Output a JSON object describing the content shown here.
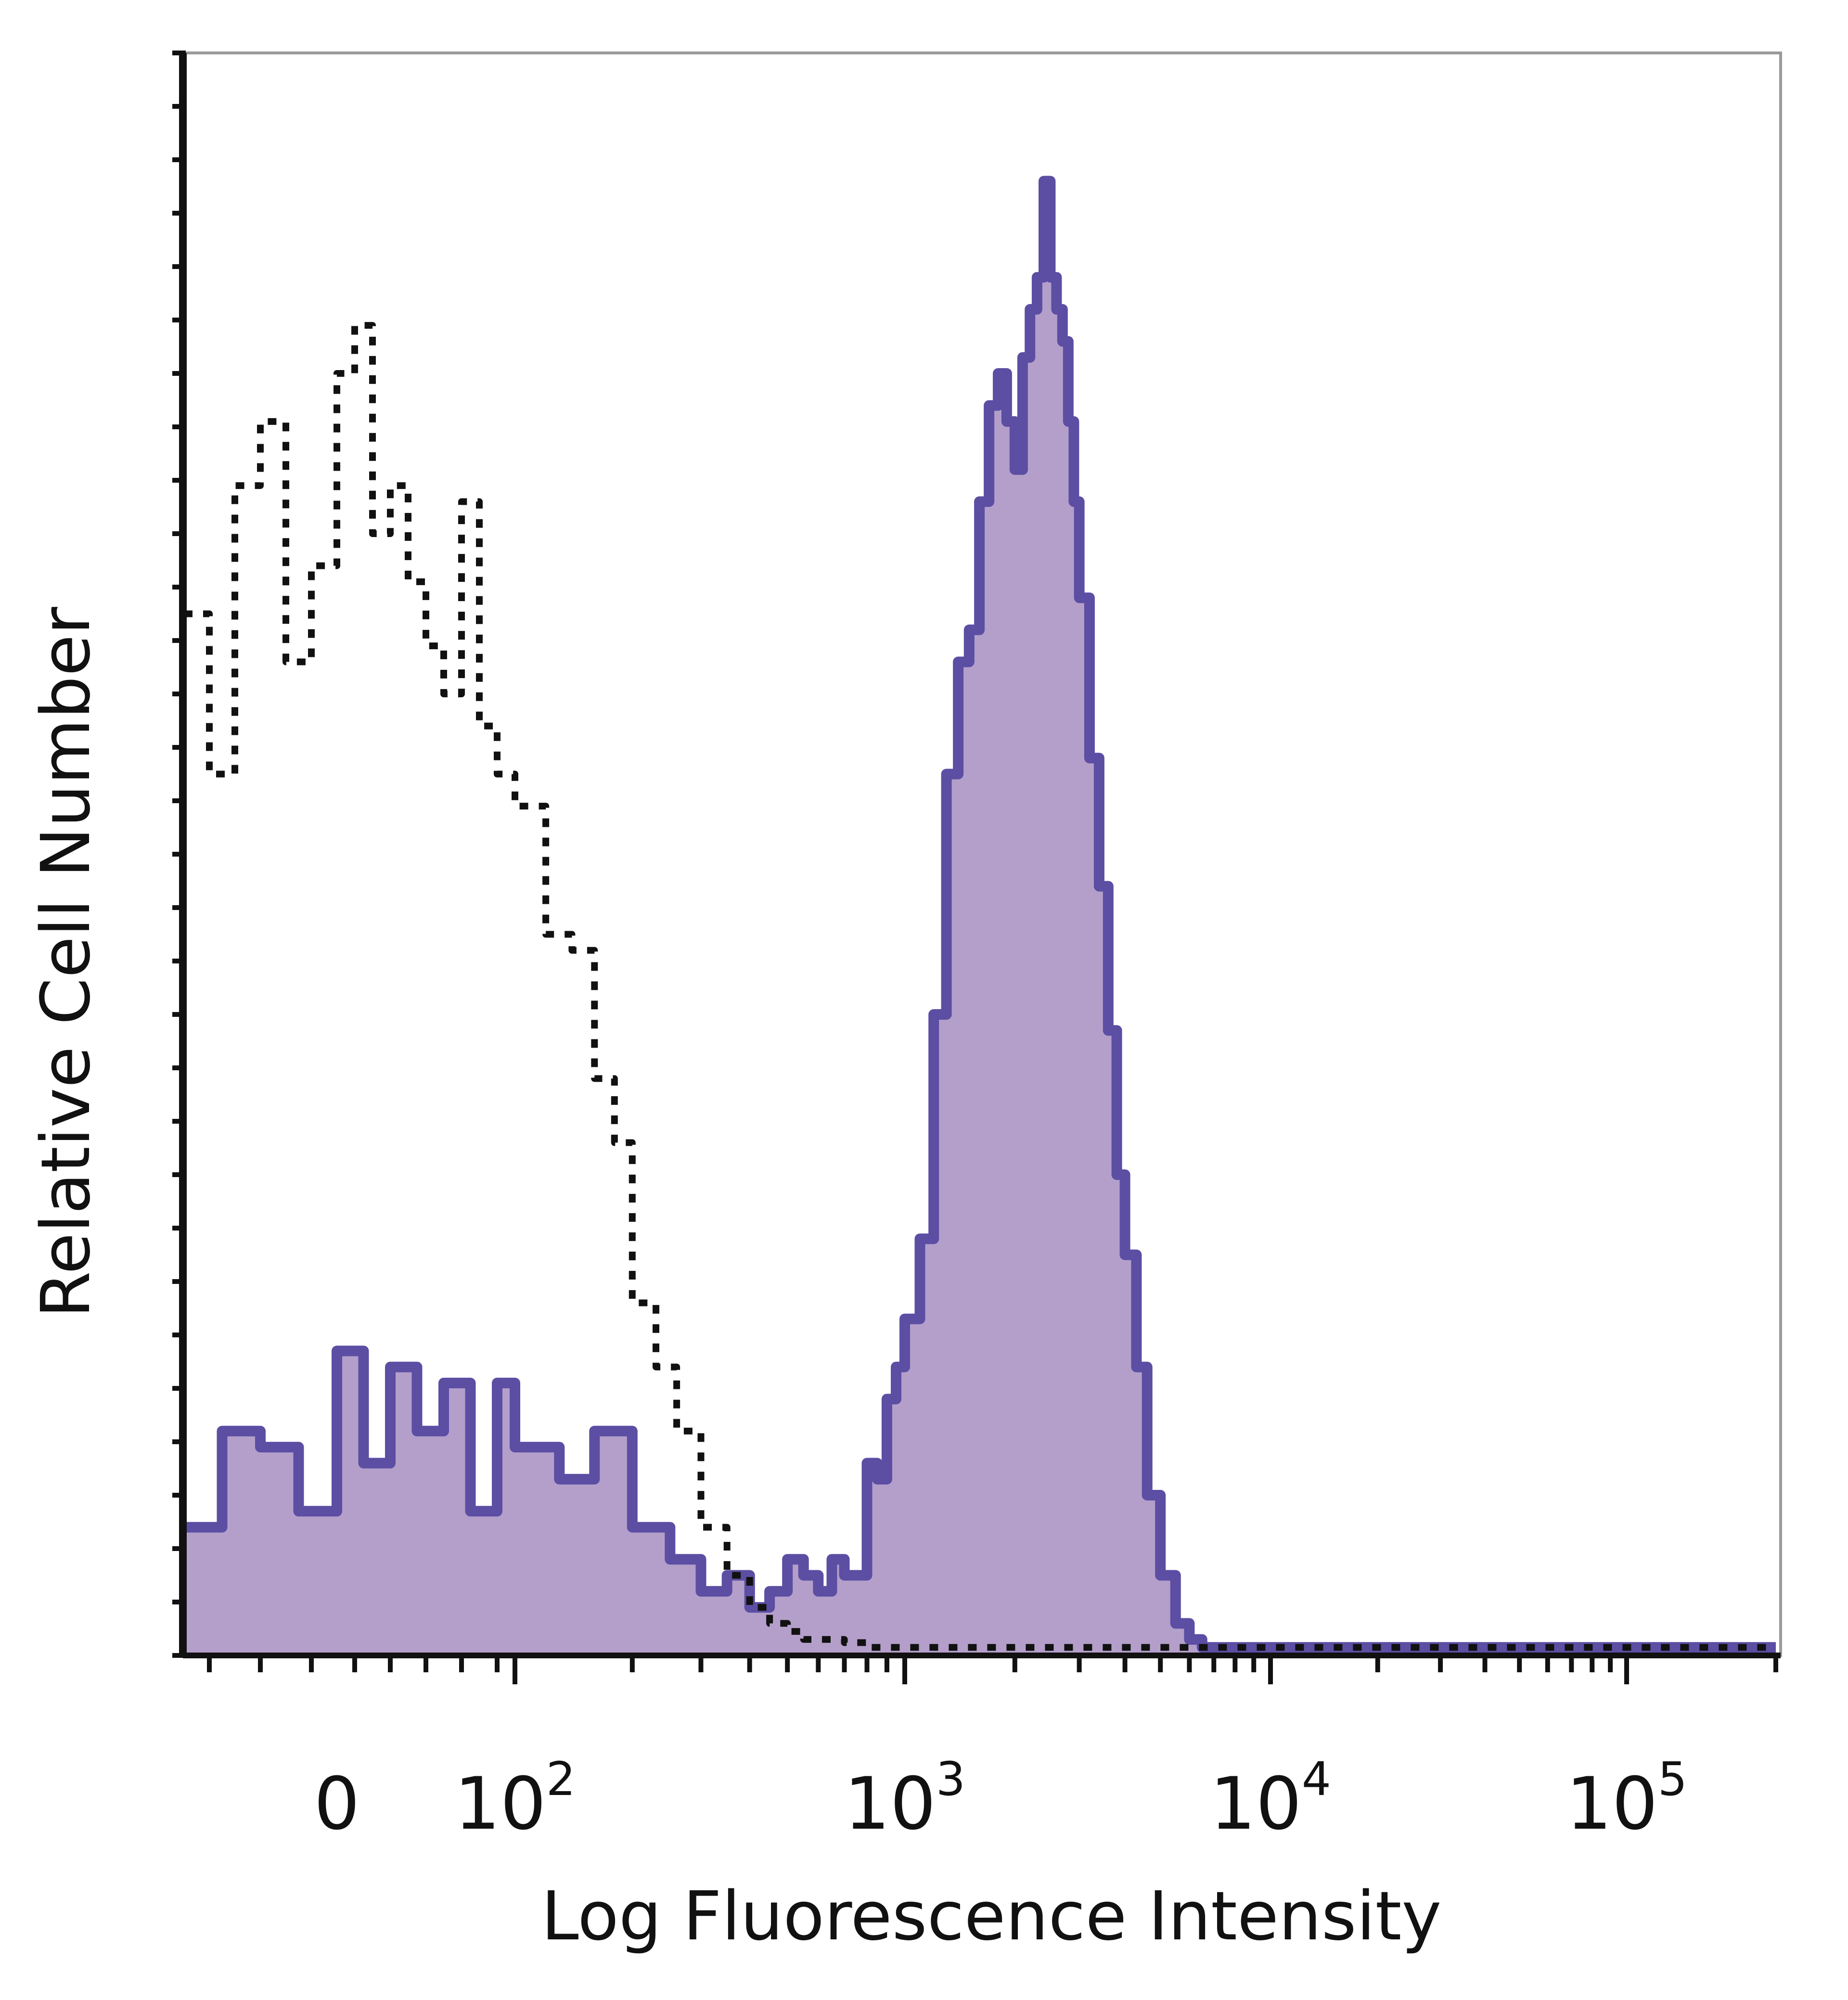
{
  "chart_data": {
    "type": "area",
    "xlabel": "Log Fluorescence Intensity",
    "ylabel": "Relative Cell Number",
    "x_scale": "biexponential",
    "x_ticks": [
      {
        "base": "0",
        "exp": "",
        "value": 0
      },
      {
        "base": "10",
        "exp": "2",
        "value": 100
      },
      {
        "base": "10",
        "exp": "3",
        "value": 1000
      },
      {
        "base": "10",
        "exp": "4",
        "value": 10000
      },
      {
        "base": "10",
        "exp": "5",
        "value": 100000
      }
    ],
    "ylim": [
      0,
      100
    ],
    "grid": false,
    "series": [
      {
        "style": "filled",
        "fill": "#b49fcb",
        "stroke": "#5b4ea3",
        "x": [
          -60,
          -45,
          -30,
          -15,
          0,
          15,
          30,
          45,
          60,
          75,
          90,
          100,
          130,
          160,
          200,
          250,
          300,
          350,
          400,
          450,
          500,
          550,
          600,
          650,
          700,
          750,
          800,
          850,
          900,
          950,
          1000,
          1100,
          1200,
          1300,
          1400,
          1500,
          1600,
          1700,
          1800,
          1900,
          2000,
          2100,
          2200,
          2300,
          2400,
          2500,
          2600,
          2700,
          2800,
          2900,
          3000,
          3200,
          3400,
          3600,
          3800,
          4000,
          4300,
          4600,
          5000,
          5500,
          6000,
          6500,
          7000,
          7500,
          8000,
          9000,
          10000,
          12000,
          15000,
          20000,
          30000,
          50000,
          100000,
          200000
        ],
        "y": [
          8,
          14,
          13,
          9,
          19,
          12,
          18,
          14,
          17,
          9,
          17,
          13,
          11,
          14,
          8,
          6,
          4,
          5,
          3,
          4,
          6,
          5,
          4,
          6,
          5,
          5,
          12,
          11,
          16,
          18,
          21,
          26,
          40,
          55,
          62,
          64,
          72,
          78,
          80,
          77,
          74,
          81,
          84,
          86,
          92,
          86,
          84,
          82,
          77,
          72,
          66,
          56,
          48,
          39,
          30,
          25,
          18,
          10,
          5,
          2,
          1,
          0.5,
          0.5,
          0.5,
          0.5,
          0.5,
          0.5,
          0.5,
          0.5,
          0.5,
          0.5,
          0.5,
          0.5,
          0.5
        ]
      },
      {
        "style": "dotted",
        "stroke": "#111111",
        "x": [
          -60,
          -50,
          -40,
          -30,
          -20,
          -10,
          0,
          10,
          20,
          30,
          40,
          50,
          60,
          70,
          80,
          90,
          100,
          120,
          140,
          160,
          180,
          200,
          230,
          260,
          300,
          350,
          400,
          450,
          500,
          550,
          600,
          700,
          800,
          1000,
          1500,
          2000,
          3000,
          5000,
          10000,
          50000,
          200000
        ],
        "y": [
          65,
          55,
          73,
          77,
          62,
          68,
          80,
          83,
          70,
          73,
          67,
          63,
          60,
          72,
          58,
          55,
          53,
          45,
          44,
          36,
          32,
          22,
          18,
          14,
          8,
          5,
          3,
          2,
          1.5,
          1,
          1,
          0.8,
          0.5,
          0.5,
          0.5,
          0.5,
          0.5,
          0.5,
          0.5,
          0.5,
          0.5
        ]
      }
    ]
  }
}
